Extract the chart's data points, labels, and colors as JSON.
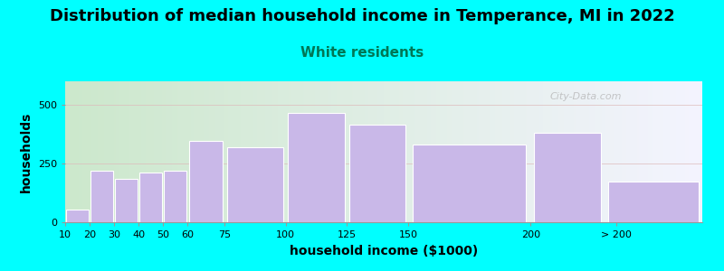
{
  "title": "Distribution of median household income in Temperance, MI in 2022",
  "subtitle": "White residents",
  "xlabel": "household income ($1000)",
  "ylabel": "households",
  "background_color": "#00FFFF",
  "plot_bg_gradient_left": "#cce8cc",
  "plot_bg_gradient_right": "#f4f4ff",
  "bar_color": "#c9b8e8",
  "bar_edge_color": "#ffffff",
  "bar_left_edges": [
    10,
    20,
    30,
    40,
    50,
    60,
    75,
    100,
    125,
    150,
    200,
    230
  ],
  "bar_widths": [
    10,
    10,
    10,
    10,
    10,
    15,
    25,
    25,
    25,
    50,
    30,
    40
  ],
  "bar_labels": [
    "10",
    "20",
    "30",
    "40",
    "50",
    "60",
    "75",
    "100",
    "125",
    "150",
    "200",
    "> 200"
  ],
  "values": [
    55,
    220,
    185,
    210,
    220,
    345,
    320,
    465,
    415,
    330,
    380,
    175
  ],
  "xlim": [
    10,
    270
  ],
  "ylim": [
    0,
    600
  ],
  "yticks": [
    0,
    250,
    500
  ],
  "xtick_positions": [
    10,
    20,
    30,
    40,
    50,
    60,
    75,
    100,
    125,
    150,
    200,
    235
  ],
  "xtick_labels": [
    "10",
    "20",
    "30",
    "40",
    "50",
    "60",
    "75",
    "100",
    "125",
    "150",
    "200",
    "> 200"
  ],
  "title_fontsize": 13,
  "subtitle_fontsize": 11,
  "subtitle_color": "#007755",
  "axis_label_fontsize": 10,
  "tick_fontsize": 8,
  "watermark_text": "City-Data.com",
  "watermark_color": "#b0b0b0"
}
